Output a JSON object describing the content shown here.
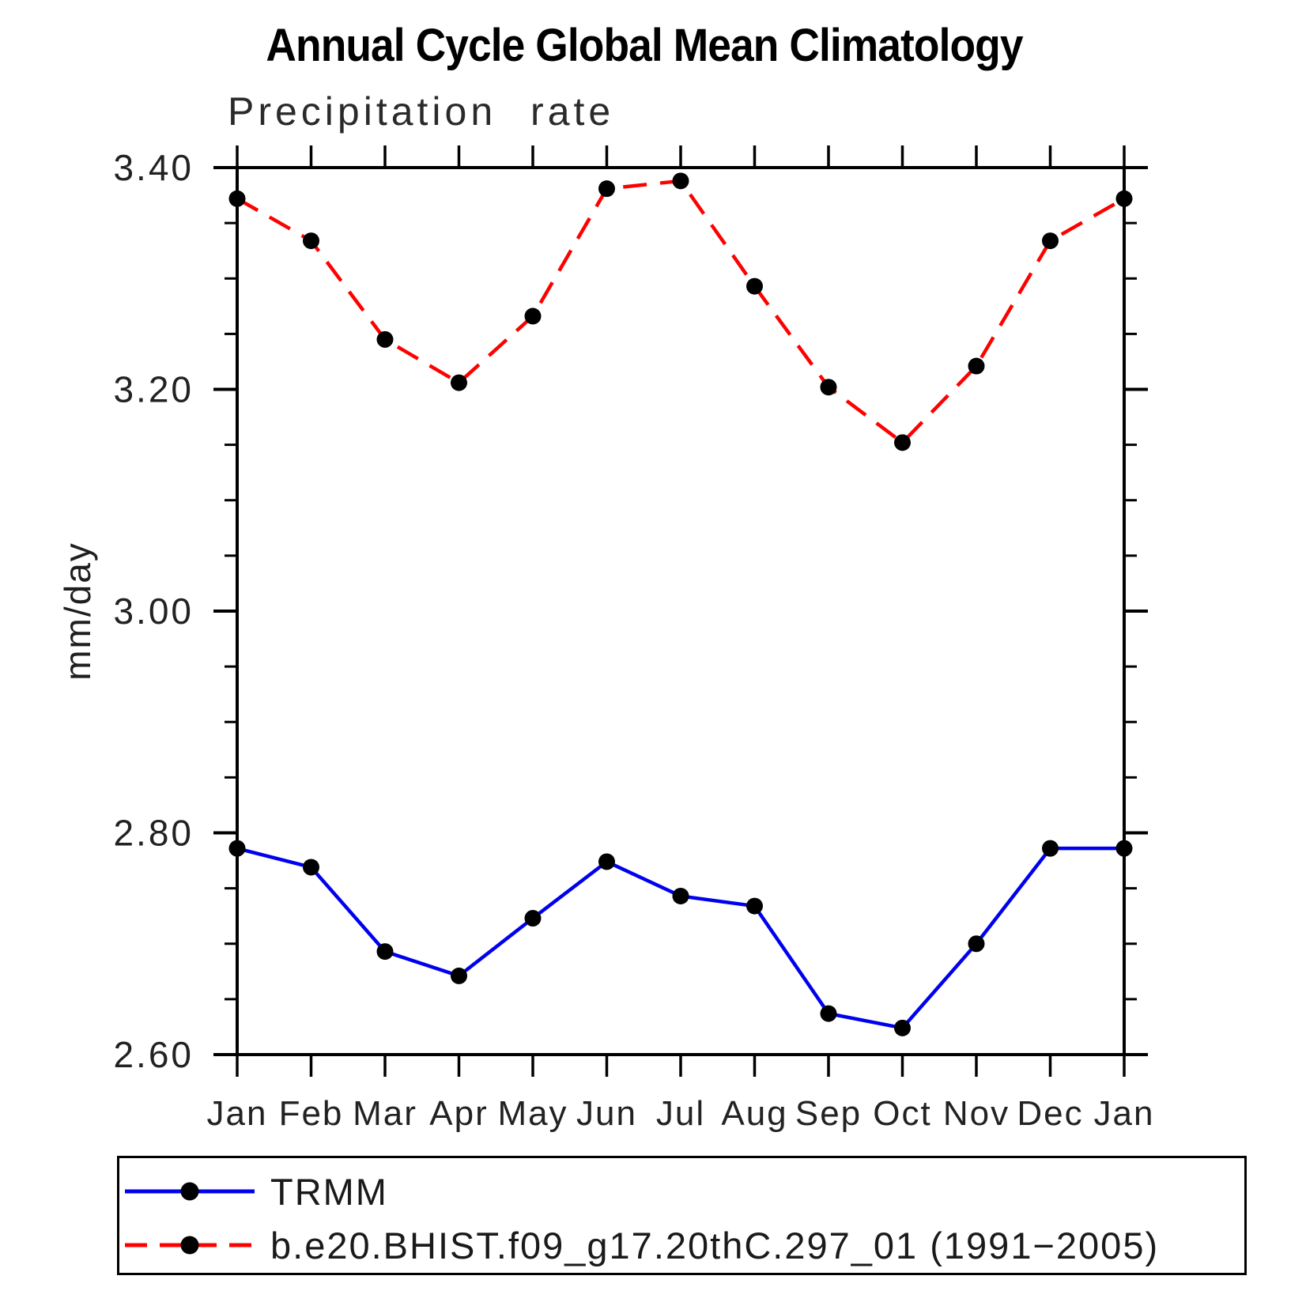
{
  "page": {
    "title": "Annual Cycle Global Mean Climatology"
  },
  "chart_data": {
    "type": "line",
    "title": "Annual Cycle Global Mean Climatology",
    "subtitle": "Precipitation rate",
    "ylabel": "mm/day",
    "xlabel": "",
    "categories": [
      "Jan",
      "Feb",
      "Mar",
      "Apr",
      "May",
      "Jun",
      "Jul",
      "Aug",
      "Sep",
      "Oct",
      "Nov",
      "Dec",
      "Jan"
    ],
    "series": [
      {
        "name": "TRMM",
        "color": "#0000ee",
        "line_style": "solid",
        "marker": "circle",
        "marker_color": "#000000",
        "values": [
          2.786,
          2.769,
          2.693,
          2.671,
          2.723,
          2.774,
          2.743,
          2.734,
          2.637,
          2.624,
          2.7,
          2.786,
          2.786
        ]
      },
      {
        "name": "b.e20.BHIST.f09_g17.20thC.297_01 (1991−2005)",
        "color": "#ff0000",
        "line_style": "dashed",
        "marker": "circle",
        "marker_color": "#000000",
        "values": [
          3.372,
          3.334,
          3.245,
          3.206,
          3.266,
          3.381,
          3.388,
          3.293,
          3.202,
          3.152,
          3.221,
          3.334,
          3.372
        ]
      }
    ],
    "ylim": [
      2.6,
      3.4
    ],
    "ytick_major_step": 0.2,
    "ytick_minor_step": 0.05,
    "ytick_label_decimals": 2,
    "grid": false,
    "legend_position": "bottom",
    "axis_color": "#000000"
  }
}
